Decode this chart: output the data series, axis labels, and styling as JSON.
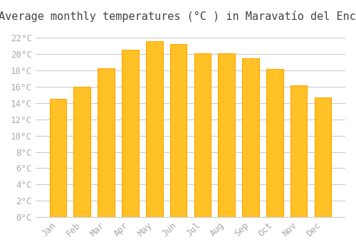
{
  "title": "Average monthly temperatures (°C ) in Maravatío del Encinal",
  "months": [
    "Jan",
    "Feb",
    "Mar",
    "Apr",
    "May",
    "Jun",
    "Jul",
    "Aug",
    "Sep",
    "Oct",
    "Nov",
    "Dec"
  ],
  "temperatures": [
    14.5,
    16.0,
    18.3,
    20.5,
    21.6,
    21.2,
    20.1,
    20.1,
    19.5,
    18.2,
    16.2,
    14.7
  ],
  "bar_color_face": "#FFC125",
  "bar_color_edge": "#FFA500",
  "background_color": "#FFFFFF",
  "grid_color": "#CCCCCC",
  "ylim": [
    0,
    23
  ],
  "ytick_interval": 2,
  "title_fontsize": 11,
  "tick_fontsize": 9,
  "tick_color": "#AAAAAA",
  "font_family": "monospace"
}
